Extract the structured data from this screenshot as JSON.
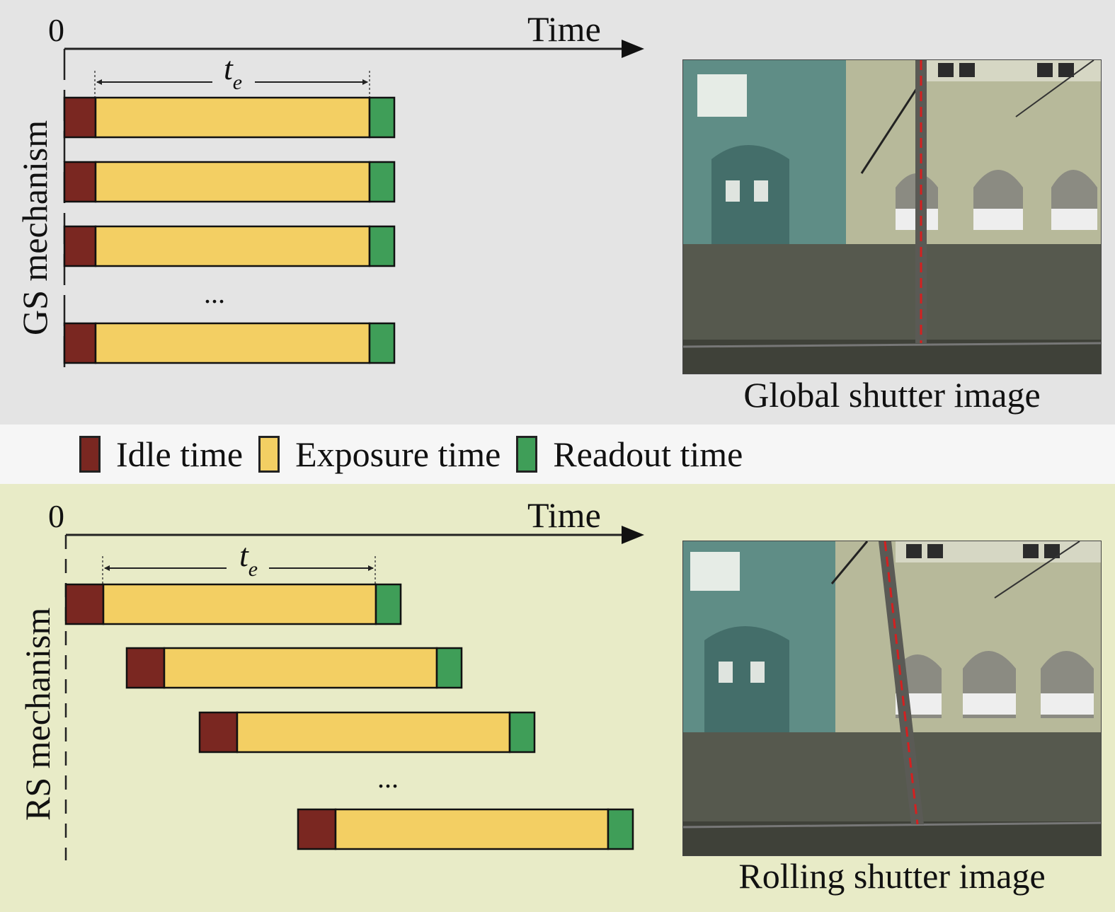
{
  "colors": {
    "idle": "#7a2721",
    "exposure": "#f3cf63",
    "readout": "#3f9e58",
    "gs_background": "#e4e4e4",
    "rs_background": "#e8ebc7",
    "legend_background": "#f6f6f6"
  },
  "gs": {
    "origin_label": "0",
    "axis_label": "Time",
    "exposure_symbol": "t",
    "exposure_subscript": "e",
    "side_label": "GS mechanism",
    "ellipsis": "...",
    "caption": "Global shutter image"
  },
  "legend": {
    "idle": "Idle time",
    "exposure": "Exposure time",
    "readout": "Readout time"
  },
  "rs": {
    "origin_label": "0",
    "axis_label": "Time",
    "exposure_symbol": "t",
    "exposure_subscript": "e",
    "side_label": "RS mechanism",
    "ellipsis": "...",
    "caption": "Rolling shutter image"
  }
}
